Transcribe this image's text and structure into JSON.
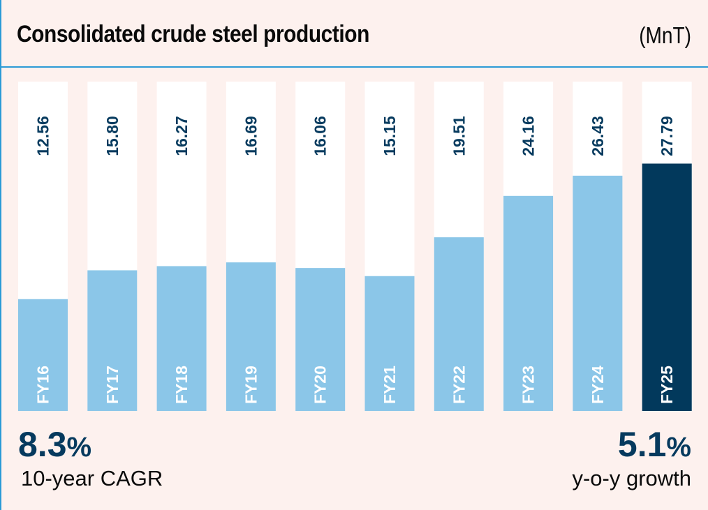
{
  "header": {
    "title": "Consolidated crude steel production",
    "unit": "(MnT)"
  },
  "colors": {
    "background": "#fdf1ee",
    "column_bg": "#ffffff",
    "bar": "#8bc6e8",
    "bar_highlight": "#02395c",
    "value_text": "#063a5e",
    "rule": "#2b9ad6"
  },
  "chart_data": {
    "type": "bar",
    "title": "Consolidated crude steel production",
    "unit": "MnT",
    "xlabel": "",
    "ylabel": "",
    "orientation": "vertical",
    "grid": false,
    "legend": "none",
    "categories": [
      "FY16",
      "FY17",
      "FY18",
      "FY19",
      "FY20",
      "FY21",
      "FY22",
      "FY23",
      "FY24",
      "FY25"
    ],
    "values": [
      12.56,
      15.8,
      16.27,
      16.69,
      16.06,
      15.15,
      19.51,
      24.16,
      26.43,
      27.79
    ],
    "value_labels": [
      "12.56",
      "15.80",
      "16.27",
      "16.69",
      "16.06",
      "15.15",
      "19.51",
      "24.16",
      "26.43",
      "27.79"
    ],
    "highlight_index": 9,
    "ylim": [
      0,
      37
    ]
  },
  "stats": {
    "left": {
      "value": "8.3",
      "suffix": "%",
      "caption": "10-year CAGR"
    },
    "right": {
      "value": "5.1",
      "suffix": "%",
      "caption": "y-o-y growth"
    }
  }
}
